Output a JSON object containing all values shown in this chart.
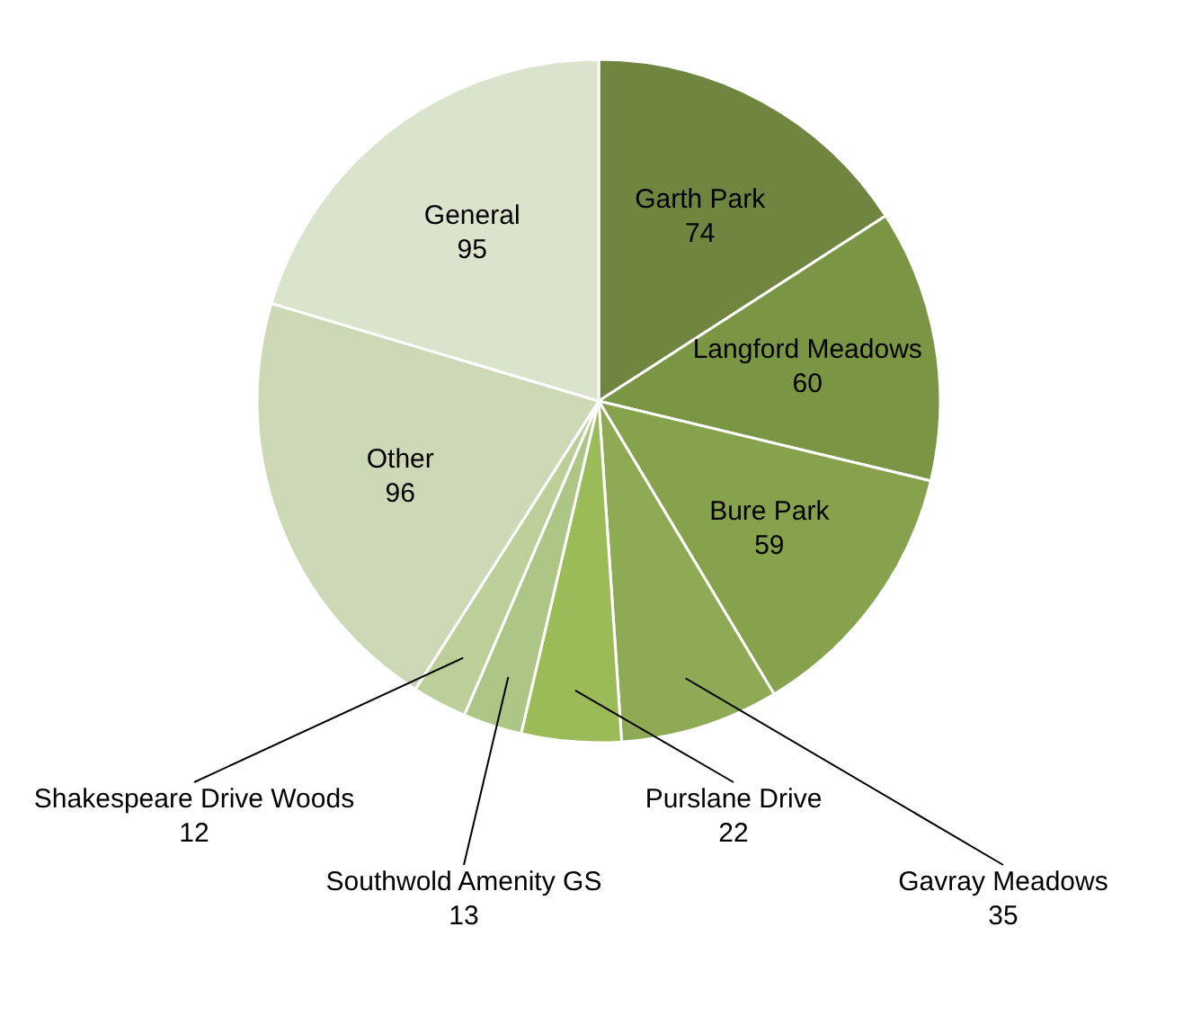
{
  "chart_data": {
    "type": "pie",
    "categories": [
      "Garth Park",
      "Langford Meadows",
      "Bure Park",
      "Gavray Meadows",
      "Purslane Drive",
      "Southwold Amenity GS",
      "Shakespeare Drive Woods",
      "Other",
      "General"
    ],
    "values": [
      74,
      60,
      59,
      35,
      22,
      13,
      12,
      96,
      95
    ],
    "colors": [
      "#6f8540",
      "#7a9645",
      "#86a24d",
      "#8faa55",
      "#9bbb59",
      "#adc585",
      "#bccf99",
      "#cdd9b6",
      "#dae3cb"
    ],
    "data_labels": true
  }
}
